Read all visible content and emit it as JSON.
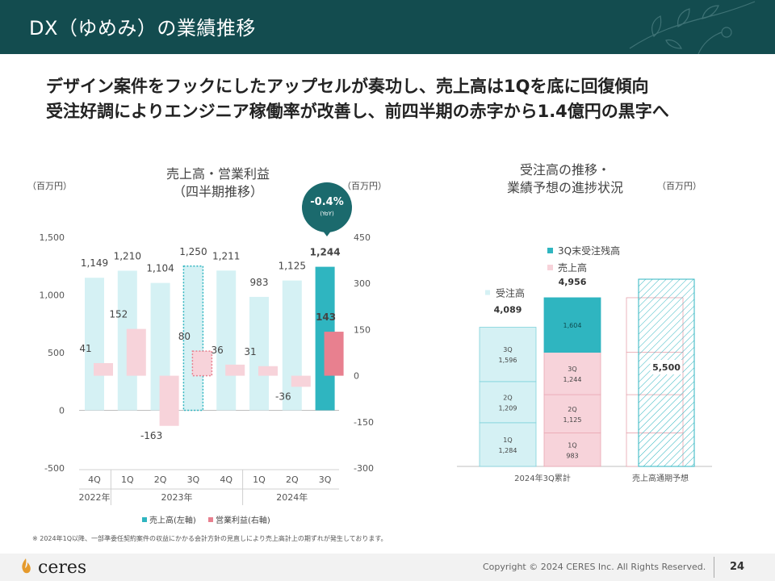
{
  "header": {
    "title": "DX（ゆめみ）の業績推移"
  },
  "headline": {
    "line1": "デザイン案件をフックにしたアップセルが奏功し、売上高は1Qを底に回復傾向",
    "line2": "受注好調によりエンジニア稼働率が改善し、前四半期の赤字から1.4億円の黒字へ"
  },
  "left_chart": {
    "title_line1": "売上高・営業利益",
    "title_line2": "（四半期推移）",
    "unit_left": "（百万円）",
    "unit_right": "（百万円）",
    "badge_value": "-0.4%",
    "badge_sub": "(YoY)",
    "legend_sales": "売上高(左軸)",
    "legend_profit": "営業利益(右軸)"
  },
  "right_chart": {
    "title_line1": "受注高の推移・",
    "title_line2": "業績予想の進捗状況",
    "unit": "（百万円）"
  },
  "note": "※ 2024年1Q以降、一部準委任契約案件の収益にかかる会計方針の見直しにより売上高計上の期ずれが発生しております。",
  "footer": {
    "logo": "ceres",
    "copyright": "Copyright © 2024 CERES Inc. All Rights Reserved.",
    "page": "24"
  },
  "colors": {
    "header_bg": "#134c4f",
    "sales_light": "#d5f1f4",
    "sales_highlight": "#2fb5c0",
    "profit_light": "#f7d3da",
    "profit_highlight": "#e8808f",
    "badge": "#1b6a6d"
  },
  "chart_data": [
    {
      "type": "bar",
      "categories": [
        "4Q",
        "1Q",
        "2Q",
        "3Q",
        "4Q",
        "1Q",
        "2Q",
        "3Q"
      ],
      "years": [
        {
          "label": "2022年",
          "from": 0,
          "to": 0
        },
        {
          "label": "2023年",
          "from": 1,
          "to": 4
        },
        {
          "label": "2024年",
          "from": 5,
          "to": 7
        }
      ],
      "series": [
        {
          "name": "売上高(左軸)",
          "axis": "left",
          "values": [
            1149,
            1210,
            1104,
            1250,
            1211,
            983,
            1125,
            1244
          ],
          "labels": [
            "1,149",
            "1,210",
            "1,104",
            "1,250",
            "1,211",
            "983",
            "1,125",
            "1,244"
          ]
        },
        {
          "name": "営業利益(右軸)",
          "axis": "right",
          "values": [
            41,
            152,
            -163,
            80,
            36,
            31,
            -36,
            143
          ],
          "labels": [
            "41",
            "152",
            "-163",
            "80",
            "36",
            "31",
            "-36",
            "143"
          ]
        }
      ],
      "highlight_index": 7,
      "dotted_index": 3,
      "yleft": {
        "min": -500,
        "max": 1500,
        "ticks": [
          -500,
          0,
          500,
          1000,
          1500
        ],
        "tick_labels": [
          "-500",
          "0",
          "500",
          "1,000",
          "1,500"
        ]
      },
      "yright": {
        "min": -300,
        "max": 450,
        "ticks": [
          -300,
          -150,
          0,
          150,
          300,
          450
        ],
        "tick_labels": [
          "-300",
          "-150",
          "0",
          "150",
          "300",
          "450"
        ]
      }
    },
    {
      "type": "stacked_bar",
      "ymax": 6000,
      "columns": [
        {
          "category": "2024年3Q累計",
          "group": "受注高",
          "total_label": "4,089",
          "segments": [
            {
              "label": "1Q",
              "value": 1284,
              "value_label": "1,284"
            },
            {
              "label": "2Q",
              "value": 1209,
              "value_label": "1,209"
            },
            {
              "label": "3Q",
              "value": 1596,
              "value_label": "1,596"
            }
          ]
        },
        {
          "category": "",
          "group": "売上高",
          "total_label": "4,956",
          "segments": [
            {
              "label": "1Q",
              "value": 983,
              "value_label": "983"
            },
            {
              "label": "2Q",
              "value": 1125,
              "value_label": "1,125"
            },
            {
              "label": "3Q",
              "value": 1244,
              "value_label": "1,244"
            },
            {
              "label": "",
              "value": 1604,
              "value_label": "1,604"
            }
          ]
        },
        {
          "category": "売上高通期予想",
          "group": "forecast",
          "total_label": "5,500",
          "value": 5500
        }
      ],
      "legend": [
        "3Q末受注残高",
        "売上高",
        "受注高"
      ]
    }
  ]
}
